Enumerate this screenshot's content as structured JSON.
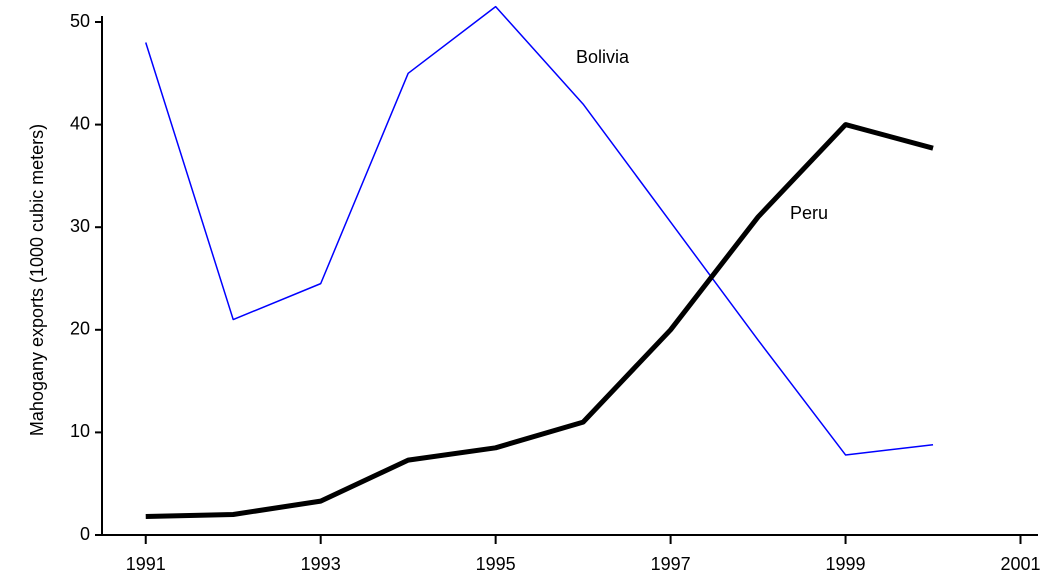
{
  "chart_data": {
    "type": "line",
    "y_label": "Mahogany exports (1000 cubic meters)",
    "x": [
      1991,
      1992,
      1993,
      1994,
      1995,
      1996,
      1997,
      1998,
      1999,
      2000
    ],
    "series": [
      {
        "name": "Bolivia",
        "color": "#0000ff",
        "values": [
          48,
          21,
          24.5,
          45,
          51.5,
          42,
          30.5,
          19,
          7.8,
          8.8
        ]
      },
      {
        "name": "Peru",
        "color": "#000000",
        "values": [
          1.8,
          2,
          3.3,
          7.3,
          8.5,
          11,
          20,
          31,
          40,
          37.7
        ]
      }
    ],
    "xlim": [
      1990.5,
      2001.2
    ],
    "xticks": [
      1991,
      1993,
      1995,
      1997,
      1999,
      2001
    ],
    "ylim": [
      0,
      50
    ],
    "yticks": [
      0,
      10,
      20,
      30,
      40,
      50
    ]
  }
}
